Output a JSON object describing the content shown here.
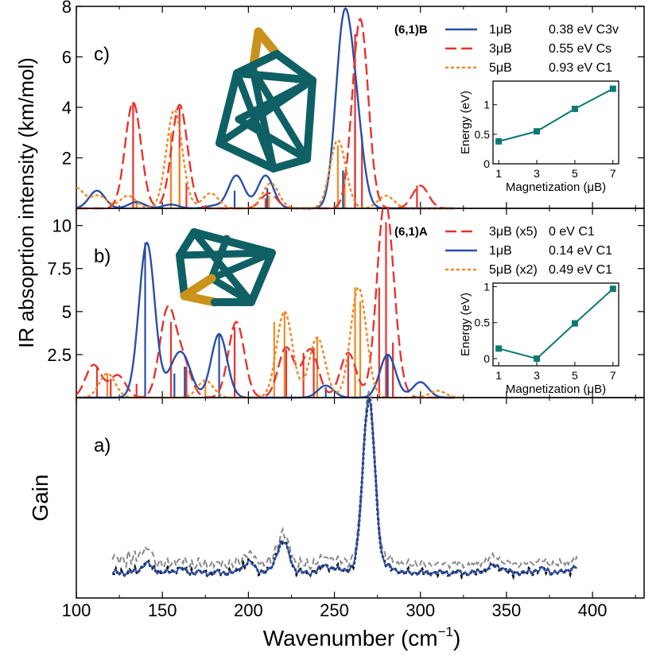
{
  "figure": {
    "ylabel": "IR absoprtion intensity (km/mol)",
    "xlabel_main": "Wavenumber (cm",
    "xlabel_exp": "−1",
    "xlabel_close": ")",
    "gain_label": "Gain",
    "xticks": [
      100,
      150,
      200,
      250,
      300,
      350,
      400
    ]
  },
  "chart_data": [
    {
      "id": "c",
      "panel_label": "c)",
      "type": "line",
      "xlim": [
        100,
        430
      ],
      "ylim": [
        0,
        8
      ],
      "yticks": [
        "2",
        "4",
        "6",
        "8"
      ],
      "ytick_values": [
        2,
        4,
        6,
        8
      ],
      "legend_title": "(6,1)B",
      "legend_placement": "top-right",
      "series": [
        {
          "name": "1μB",
          "color": "#2a4fa8",
          "dash": "solid",
          "energy": "0.38 eV",
          "symmetry": "C3v",
          "peaks": [
            [
              112,
              0.7
            ],
            [
              135,
              0.25
            ],
            [
              155,
              0.15
            ],
            [
              180,
              0.1
            ],
            [
              193,
              1.3
            ],
            [
              210,
              1.3
            ],
            [
              255,
              6.6
            ],
            [
              262,
              3.4
            ]
          ],
          "sticks": [
            [
              135,
              0.3
            ],
            [
              192,
              0.7
            ],
            [
              211,
              0.8
            ],
            [
              255,
              1.5
            ],
            [
              262,
              3.4
            ]
          ]
        },
        {
          "name": "3μB",
          "color": "#e8332e",
          "dash": "long",
          "energy": "0.55 eV",
          "symmetry": "Cs",
          "peaks": [
            [
              133,
              4.2
            ],
            [
              160,
              4.1
            ],
            [
              212,
              0.6
            ],
            [
              265,
              7.5
            ],
            [
              300,
              0.9
            ]
          ],
          "sticks": [
            [
              133,
              4.2
            ],
            [
              155,
              1.8
            ],
            [
              160,
              4.0
            ],
            [
              164,
              1.0
            ],
            [
              210,
              0.4
            ],
            [
              262,
              6.9
            ],
            [
              266,
              2.9
            ],
            [
              298,
              0.9
            ]
          ]
        },
        {
          "name": "5μB",
          "color": "#f08a24",
          "dash": "dot",
          "energy": "0.93 eV",
          "symmetry": "C1",
          "peaks": [
            [
              100,
              0.8
            ],
            [
              113,
              0.5
            ],
            [
              130,
              0.5
            ],
            [
              157,
              3.9
            ],
            [
              178,
              0.6
            ],
            [
              213,
              1.0
            ],
            [
              252,
              2.7
            ],
            [
              280,
              0.5
            ]
          ],
          "sticks": [
            [
              135,
              0.2
            ],
            [
              155,
              3.0
            ],
            [
              160,
              2.4
            ],
            [
              212,
              0.5
            ],
            [
              252,
              2.5
            ],
            [
              256,
              1.4
            ]
          ]
        }
      ],
      "inset": {
        "xlabel": "Magnetization (μB)",
        "ylabel": "Energy (eV)",
        "x": [
          1,
          3,
          5,
          7
        ],
        "y": [
          0.38,
          0.55,
          0.93,
          1.27
        ],
        "xlim": [
          0.7,
          7.3
        ],
        "ylim": [
          0,
          1.4
        ],
        "yticks": [
          0,
          0.5,
          1
        ],
        "ytick_labels": [
          "0",
          "0.5",
          "1"
        ],
        "color": "#0d7a72"
      }
    },
    {
      "id": "b",
      "panel_label": "b)",
      "type": "line",
      "xlim": [
        100,
        430
      ],
      "ylim": [
        0,
        11
      ],
      "yticks": [
        "2.5",
        "5",
        "7.5",
        "10"
      ],
      "ytick_values": [
        2.5,
        5,
        7.5,
        10
      ],
      "legend_title": "(6,1)A",
      "legend_placement": "top-right",
      "series": [
        {
          "name": "3μB (x5)",
          "color": "#e8332e",
          "dash": "long",
          "energy": "0 eV",
          "symmetry": "C1",
          "peaks": [
            [
              110,
              1.9
            ],
            [
              124,
              1.3
            ],
            [
              153,
              5.0
            ],
            [
              162,
              2.0
            ],
            [
              193,
              4.4
            ],
            [
              222,
              2.9
            ],
            [
              236,
              2.8
            ],
            [
              258,
              2.6
            ],
            [
              279,
              10.3
            ],
            [
              284,
              2.0
            ]
          ],
          "sticks": [
            [
              112,
              1.8
            ],
            [
              120,
              1.1
            ],
            [
              135,
              0.8
            ],
            [
              155,
              4.4
            ],
            [
              164,
              1.8
            ],
            [
              192,
              4.1
            ],
            [
              222,
              2.8
            ],
            [
              232,
              2.6
            ],
            [
              238,
              2.9
            ],
            [
              258,
              2.5
            ],
            [
              276,
              6.4
            ],
            [
              280,
              10.2
            ],
            [
              284,
              3.2
            ]
          ]
        },
        {
          "name": "1μB",
          "color": "#2a4fa8",
          "dash": "solid",
          "energy": "0.14 eV",
          "symmetry": "C1",
          "peaks": [
            [
              141,
              9.0
            ],
            [
              157,
              1.5
            ],
            [
              163,
              1.8
            ],
            [
              183,
              3.7
            ],
            [
              245,
              0.7
            ],
            [
              281,
              2.5
            ],
            [
              300,
              0.9
            ]
          ],
          "sticks": [
            [
              140,
              9.0
            ],
            [
              157,
              1.4
            ],
            [
              163,
              1.8
            ],
            [
              183,
              3.7
            ],
            [
              245,
              0.6
            ],
            [
              281,
              2.5
            ]
          ]
        },
        {
          "name": "5μB (x2)",
          "color": "#f08a24",
          "dash": "dot",
          "energy": "0.49 eV",
          "symmetry": "C1",
          "peaks": [
            [
              118,
              1.4
            ],
            [
              175,
              1.0
            ],
            [
              221,
              5.0
            ],
            [
              240,
              3.5
            ],
            [
              264,
              6.4
            ],
            [
              310,
              0.4
            ]
          ],
          "sticks": [
            [
              118,
              1.4
            ],
            [
              175,
              1.0
            ],
            [
              215,
              4.4
            ],
            [
              221,
              5.0
            ],
            [
              240,
              3.5
            ],
            [
              262,
              6.4
            ],
            [
              265,
              5.6
            ]
          ]
        }
      ],
      "inset": {
        "xlabel": "Magnetization (μB)",
        "ylabel": "Energy (eV)",
        "x": [
          1,
          3,
          5,
          7
        ],
        "y": [
          0.14,
          0,
          0.49,
          0.97
        ],
        "xlim": [
          0.7,
          7.3
        ],
        "ylim": [
          -0.1,
          1.05
        ],
        "yticks": [
          0,
          0.5,
          1
        ],
        "ytick_labels": [
          "0",
          "0.5",
          "1"
        ],
        "color": "#0d7a72"
      }
    },
    {
      "id": "a",
      "panel_label": "a)",
      "type": "line",
      "xlim": [
        100,
        430
      ],
      "ylim": [
        0,
        1
      ],
      "series": [
        {
          "color": "#888888",
          "dash": "dash",
          "role": "gain-raw"
        },
        {
          "color": "#111111",
          "dash": "dot",
          "role": "gain-points"
        },
        {
          "color": "#2a4fa8",
          "dash": "solid",
          "role": "gain-fit"
        }
      ],
      "gain_x_range": [
        121,
        391
      ],
      "gain_peaks": [
        [
          141,
          0.05
        ],
        [
          160,
          0.02
        ],
        [
          200,
          0.06
        ],
        [
          220,
          0.18
        ],
        [
          245,
          0.04
        ],
        [
          255,
          0.02
        ],
        [
          270,
          1.0
        ],
        [
          282,
          0.03
        ],
        [
          340,
          0.02
        ],
        [
          345,
          0.03
        ],
        [
          370,
          0.02
        ],
        [
          390,
          0.03
        ]
      ],
      "gain_baseline": 0.045
    }
  ]
}
